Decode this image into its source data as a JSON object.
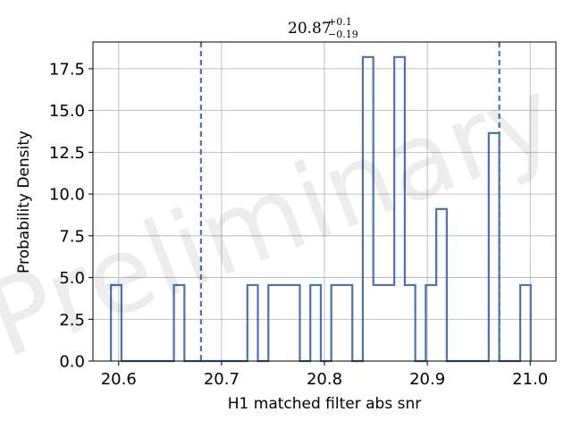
{
  "chart_data": {
    "type": "histogram",
    "title": {
      "value": "20.87",
      "plus": "+0.1",
      "minus": "−0.19"
    },
    "xlabel": "H1 matched filter abs snr",
    "ylabel": "Probability Density",
    "xlim": [
      20.575,
      21.025
    ],
    "ylim": [
      0,
      19.1
    ],
    "xticks": [
      20.6,
      20.7,
      20.8,
      20.9,
      21.0
    ],
    "xtick_labels": [
      "20.6",
      "20.7",
      "20.8",
      "20.9",
      "21.0"
    ],
    "yticks": [
      0,
      2.5,
      5.0,
      7.5,
      10.0,
      12.5,
      15.0,
      17.5
    ],
    "ytick_labels": [
      "0.0",
      "2.5",
      "5.0",
      "7.5",
      "10.0",
      "12.5",
      "15.0",
      "17.5"
    ],
    "grid": true,
    "bins": {
      "start": 20.5925,
      "width": 0.0102,
      "values": [
        4.55,
        0,
        0,
        0,
        0,
        0,
        4.55,
        0,
        0,
        0,
        0,
        0,
        0,
        4.55,
        0,
        4.55,
        4.55,
        4.55,
        0,
        4.55,
        0,
        4.55,
        4.55,
        0,
        18.2,
        4.55,
        4.55,
        18.2,
        4.55,
        0,
        4.55,
        9.1,
        0,
        0,
        0,
        0,
        13.65,
        0,
        0,
        4.55
      ]
    },
    "vlines": [
      20.68,
      20.97
    ],
    "colors": {
      "series": "#4c72b0",
      "grid": "#b0b0b0"
    },
    "watermark": "Preliminary"
  }
}
